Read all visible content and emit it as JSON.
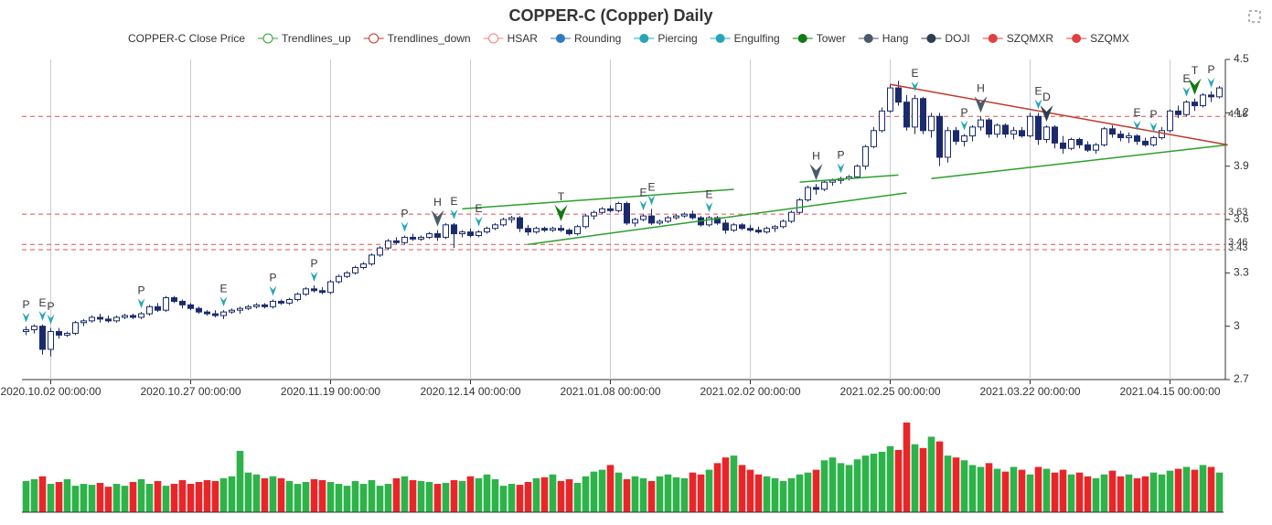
{
  "chart_data": {
    "type": "candlestick",
    "title": "COPPER-C (Copper) Daily",
    "legend": [
      {
        "name": "COPPER-C Close Price",
        "color": "#1a2a6c",
        "icon": "none"
      },
      {
        "name": "Trendlines_up",
        "color": "#2ca02c",
        "icon": "hollow"
      },
      {
        "name": "Trendlines_down",
        "color": "#c0392b",
        "icon": "hollow"
      },
      {
        "name": "HSAR",
        "color": "#f08080",
        "icon": "hollow"
      },
      {
        "name": "Rounding",
        "color": "#2e7bbf",
        "icon": "filled"
      },
      {
        "name": "Piercing",
        "color": "#26a6b5",
        "icon": "filled"
      },
      {
        "name": "Engulfing",
        "color": "#26a6b5",
        "icon": "filled"
      },
      {
        "name": "Tower",
        "color": "#127a12",
        "icon": "filled"
      },
      {
        "name": "Hang",
        "color": "#4a5a6a",
        "icon": "filled"
      },
      {
        "name": "DOJI",
        "color": "#2c3e50",
        "icon": "filled"
      },
      {
        "name": "SZQMXR",
        "color": "#e04040",
        "icon": "filled"
      },
      {
        "name": "SZQMX",
        "color": "#e04040",
        "icon": "filled"
      }
    ],
    "x": [
      null,
      null,
      null,
      "2020.10.02 00:00:00",
      null,
      null,
      null,
      null,
      null,
      null,
      null,
      null,
      null,
      null,
      null,
      null,
      null,
      null,
      null,
      null,
      "2020.10.27 00:00:00",
      null,
      null,
      null,
      null,
      null,
      null,
      null,
      null,
      null,
      null,
      null,
      null,
      null,
      null,
      null,
      null,
      "2020.11.19 00:00:00",
      null,
      null,
      null,
      null,
      null,
      null,
      null,
      null,
      null,
      null,
      null,
      null,
      null,
      null,
      null,
      null,
      "2020.12.14 00:00:00",
      null,
      null,
      null,
      null,
      null,
      null,
      null,
      null,
      null,
      null,
      null,
      null,
      null,
      null,
      null,
      null,
      "2021.01.08 00:00:00",
      null,
      null,
      null,
      null,
      null,
      null,
      null,
      null,
      null,
      null,
      null,
      null,
      null,
      null,
      null,
      null,
      "2021.02.02 00:00:00",
      null,
      null,
      null,
      null,
      null,
      null,
      null,
      null,
      null,
      null,
      null,
      null,
      null,
      null,
      null,
      null,
      "2021.02.25 00:00:00",
      null,
      null,
      null,
      null,
      null,
      null,
      null,
      null,
      null,
      null,
      null,
      null,
      null,
      null,
      null,
      null,
      "2021.03.22 00:00:00",
      null,
      null,
      null,
      null,
      null,
      null,
      null,
      null,
      null,
      null,
      null,
      null,
      null,
      null,
      null,
      null,
      "2021.04.15 00:00:00",
      null,
      null,
      null,
      null,
      null,
      null
    ],
    "ohlc": [
      [
        2.97,
        3.0,
        2.95,
        2.98
      ],
      [
        2.98,
        3.01,
        2.96,
        3.0
      ],
      [
        3.0,
        3.01,
        2.84,
        2.87
      ],
      [
        2.87,
        2.99,
        2.83,
        2.97
      ],
      [
        2.97,
        2.99,
        2.93,
        2.95
      ],
      [
        2.95,
        2.97,
        2.94,
        2.96
      ],
      [
        2.96,
        3.03,
        2.95,
        3.02
      ],
      [
        3.02,
        3.04,
        3.0,
        3.03
      ],
      [
        3.03,
        3.06,
        3.02,
        3.05
      ],
      [
        3.05,
        3.07,
        3.02,
        3.04
      ],
      [
        3.04,
        3.06,
        3.02,
        3.03
      ],
      [
        3.03,
        3.06,
        3.02,
        3.05
      ],
      [
        3.05,
        3.07,
        3.04,
        3.06
      ],
      [
        3.06,
        3.07,
        3.04,
        3.05
      ],
      [
        3.05,
        3.08,
        3.04,
        3.07
      ],
      [
        3.07,
        3.12,
        3.06,
        3.11
      ],
      [
        3.11,
        3.13,
        3.08,
        3.09
      ],
      [
        3.09,
        3.17,
        3.08,
        3.16
      ],
      [
        3.16,
        3.17,
        3.13,
        3.14
      ],
      [
        3.14,
        3.15,
        3.1,
        3.12
      ],
      [
        3.12,
        3.13,
        3.09,
        3.1
      ],
      [
        3.1,
        3.11,
        3.07,
        3.08
      ],
      [
        3.08,
        3.09,
        3.06,
        3.07
      ],
      [
        3.07,
        3.09,
        3.05,
        3.06
      ],
      [
        3.06,
        3.09,
        3.04,
        3.08
      ],
      [
        3.08,
        3.1,
        3.07,
        3.09
      ],
      [
        3.09,
        3.11,
        3.07,
        3.1
      ],
      [
        3.1,
        3.12,
        3.09,
        3.11
      ],
      [
        3.11,
        3.13,
        3.1,
        3.12
      ],
      [
        3.12,
        3.13,
        3.1,
        3.11
      ],
      [
        3.11,
        3.15,
        3.1,
        3.14
      ],
      [
        3.14,
        3.15,
        3.12,
        3.13
      ],
      [
        3.13,
        3.16,
        3.12,
        3.15
      ],
      [
        3.15,
        3.19,
        3.14,
        3.18
      ],
      [
        3.18,
        3.22,
        3.17,
        3.21
      ],
      [
        3.21,
        3.23,
        3.19,
        3.2
      ],
      [
        3.2,
        3.22,
        3.18,
        3.19
      ],
      [
        3.19,
        3.26,
        3.18,
        3.25
      ],
      [
        3.25,
        3.29,
        3.24,
        3.28
      ],
      [
        3.28,
        3.31,
        3.27,
        3.3
      ],
      [
        3.3,
        3.34,
        3.29,
        3.33
      ],
      [
        3.33,
        3.36,
        3.32,
        3.35
      ],
      [
        3.35,
        3.41,
        3.34,
        3.4
      ],
      [
        3.4,
        3.45,
        3.39,
        3.44
      ],
      [
        3.44,
        3.49,
        3.43,
        3.48
      ],
      [
        3.48,
        3.5,
        3.46,
        3.47
      ],
      [
        3.47,
        3.51,
        3.46,
        3.5
      ],
      [
        3.5,
        3.52,
        3.48,
        3.49
      ],
      [
        3.49,
        3.51,
        3.48,
        3.5
      ],
      [
        3.5,
        3.53,
        3.49,
        3.52
      ],
      [
        3.52,
        3.54,
        3.48,
        3.5
      ],
      [
        3.5,
        3.58,
        3.49,
        3.57
      ],
      [
        3.57,
        3.58,
        3.44,
        3.52
      ],
      [
        3.52,
        3.54,
        3.5,
        3.53
      ],
      [
        3.53,
        3.55,
        3.5,
        3.51
      ],
      [
        3.51,
        3.54,
        3.5,
        3.53
      ],
      [
        3.53,
        3.56,
        3.52,
        3.55
      ],
      [
        3.55,
        3.58,
        3.54,
        3.57
      ],
      [
        3.57,
        3.61,
        3.56,
        3.6
      ],
      [
        3.6,
        3.62,
        3.58,
        3.61
      ],
      [
        3.61,
        3.62,
        3.53,
        3.55
      ],
      [
        3.55,
        3.57,
        3.51,
        3.53
      ],
      [
        3.53,
        3.56,
        3.52,
        3.55
      ],
      [
        3.55,
        3.56,
        3.53,
        3.54
      ],
      [
        3.54,
        3.56,
        3.53,
        3.55
      ],
      [
        3.55,
        3.57,
        3.53,
        3.54
      ],
      [
        3.54,
        3.55,
        3.51,
        3.52
      ],
      [
        3.52,
        3.57,
        3.51,
        3.56
      ],
      [
        3.56,
        3.63,
        3.55,
        3.62
      ],
      [
        3.62,
        3.65,
        3.6,
        3.64
      ],
      [
        3.64,
        3.67,
        3.63,
        3.66
      ],
      [
        3.66,
        3.68,
        3.64,
        3.65
      ],
      [
        3.65,
        3.7,
        3.64,
        3.69
      ],
      [
        3.69,
        3.7,
        3.57,
        3.58
      ],
      [
        3.58,
        3.61,
        3.56,
        3.6
      ],
      [
        3.6,
        3.63,
        3.59,
        3.62
      ],
      [
        3.62,
        3.66,
        3.57,
        3.58
      ],
      [
        3.58,
        3.6,
        3.57,
        3.59
      ],
      [
        3.59,
        3.62,
        3.58,
        3.61
      ],
      [
        3.61,
        3.63,
        3.6,
        3.62
      ],
      [
        3.62,
        3.64,
        3.61,
        3.63
      ],
      [
        3.63,
        3.65,
        3.6,
        3.61
      ],
      [
        3.61,
        3.62,
        3.56,
        3.57
      ],
      [
        3.57,
        3.62,
        3.56,
        3.61
      ],
      [
        3.61,
        3.62,
        3.57,
        3.58
      ],
      [
        3.58,
        3.6,
        3.52,
        3.54
      ],
      [
        3.54,
        3.58,
        3.53,
        3.57
      ],
      [
        3.57,
        3.58,
        3.54,
        3.55
      ],
      [
        3.55,
        3.57,
        3.53,
        3.54
      ],
      [
        3.54,
        3.56,
        3.52,
        3.53
      ],
      [
        3.53,
        3.56,
        3.52,
        3.55
      ],
      [
        3.55,
        3.57,
        3.53,
        3.56
      ],
      [
        3.56,
        3.6,
        3.55,
        3.59
      ],
      [
        3.59,
        3.65,
        3.58,
        3.64
      ],
      [
        3.64,
        3.72,
        3.63,
        3.71
      ],
      [
        3.71,
        3.79,
        3.7,
        3.78
      ],
      [
        3.78,
        3.8,
        3.74,
        3.77
      ],
      [
        3.77,
        3.82,
        3.76,
        3.81
      ],
      [
        3.81,
        3.83,
        3.79,
        3.82
      ],
      [
        3.82,
        3.84,
        3.8,
        3.83
      ],
      [
        3.83,
        3.85,
        3.82,
        3.84
      ],
      [
        3.84,
        3.91,
        3.83,
        3.9
      ],
      [
        3.9,
        4.02,
        3.88,
        4.01
      ],
      [
        4.01,
        4.12,
        4.0,
        4.1
      ],
      [
        4.1,
        4.23,
        4.09,
        4.21
      ],
      [
        4.21,
        4.36,
        4.2,
        4.34
      ],
      [
        4.34,
        4.38,
        4.24,
        4.26
      ],
      [
        4.26,
        4.3,
        4.1,
        4.12
      ],
      [
        4.12,
        4.3,
        4.08,
        4.28
      ],
      [
        4.28,
        4.29,
        4.08,
        4.1
      ],
      [
        4.1,
        4.2,
        4.06,
        4.18
      ],
      [
        4.18,
        4.2,
        3.9,
        3.95
      ],
      [
        3.95,
        4.12,
        3.92,
        4.1
      ],
      [
        4.1,
        4.12,
        4.02,
        4.04
      ],
      [
        4.04,
        4.08,
        4.01,
        4.07
      ],
      [
        4.07,
        4.13,
        4.04,
        4.12
      ],
      [
        4.12,
        4.18,
        4.1,
        4.16
      ],
      [
        4.16,
        4.17,
        4.06,
        4.08
      ],
      [
        4.08,
        4.14,
        4.06,
        4.13
      ],
      [
        4.13,
        4.14,
        4.06,
        4.08
      ],
      [
        4.08,
        4.12,
        4.05,
        4.1
      ],
      [
        4.1,
        4.12,
        4.06,
        4.07
      ],
      [
        4.07,
        4.2,
        4.06,
        4.18
      ],
      [
        4.18,
        4.2,
        4.02,
        4.05
      ],
      [
        4.05,
        4.13,
        4.03,
        4.12
      ],
      [
        4.12,
        4.13,
        4.0,
        4.03
      ],
      [
        4.03,
        4.07,
        3.97,
        4.0
      ],
      [
        4.0,
        4.06,
        3.99,
        4.05
      ],
      [
        4.05,
        4.06,
        4.0,
        4.02
      ],
      [
        4.02,
        4.04,
        3.98,
        3.99
      ],
      [
        3.99,
        4.03,
        3.97,
        4.02
      ],
      [
        4.02,
        4.12,
        4.01,
        4.11
      ],
      [
        4.11,
        4.13,
        4.06,
        4.08
      ],
      [
        4.08,
        4.1,
        4.04,
        4.06
      ],
      [
        4.06,
        4.09,
        4.03,
        4.07
      ],
      [
        4.07,
        4.08,
        4.02,
        4.04
      ],
      [
        4.04,
        4.06,
        4.01,
        4.02
      ],
      [
        4.02,
        4.07,
        4.01,
        4.06
      ],
      [
        4.06,
        4.12,
        4.05,
        4.1
      ],
      [
        4.1,
        4.22,
        4.09,
        4.21
      ],
      [
        4.21,
        4.24,
        4.17,
        4.19
      ],
      [
        4.19,
        4.27,
        4.18,
        4.26
      ],
      [
        4.26,
        4.28,
        4.21,
        4.24
      ],
      [
        4.24,
        4.31,
        4.23,
        4.3
      ],
      [
        4.3,
        4.32,
        4.26,
        4.29
      ],
      [
        4.29,
        4.35,
        4.28,
        4.34
      ]
    ],
    "volume": [
      33,
      35,
      38,
      30,
      32,
      35,
      28,
      30,
      29,
      31,
      27,
      30,
      28,
      32,
      35,
      30,
      33,
      28,
      30,
      34,
      30,
      32,
      34,
      33,
      36,
      38,
      65,
      42,
      40,
      36,
      38,
      36,
      33,
      30,
      32,
      35,
      34,
      32,
      30,
      28,
      33,
      30,
      34,
      28,
      30,
      36,
      38,
      34,
      33,
      32,
      30,
      31,
      34,
      33,
      38,
      36,
      40,
      35,
      28,
      30,
      29,
      32,
      36,
      37,
      40,
      33,
      35,
      31,
      38,
      43,
      45,
      50,
      42,
      35,
      38,
      36,
      33,
      38,
      40,
      37,
      36,
      42,
      40,
      45,
      52,
      58,
      60,
      50,
      45,
      40,
      38,
      36,
      33,
      36,
      40,
      42,
      45,
      55,
      58,
      52,
      50,
      56,
      60,
      62,
      64,
      70,
      66,
      95,
      72,
      68,
      80,
      75,
      60,
      58,
      55,
      50,
      48,
      52,
      46,
      43,
      48,
      45,
      40,
      48,
      46,
      42,
      45,
      40,
      42,
      38,
      36,
      40,
      44,
      38,
      40,
      36,
      38,
      42,
      40,
      44,
      46,
      48,
      45,
      50,
      48,
      42
    ],
    "ylim": [
      2.7,
      4.5
    ],
    "yticks": [
      2.7,
      3,
      3.3,
      3.6,
      3.9,
      4.2,
      4.5
    ],
    "hsar_levels": [
      4.18,
      3.63,
      3.46,
      3.43
    ],
    "trendlines_up": [
      [
        53,
        3.66,
        86,
        3.77
      ],
      [
        61,
        3.46,
        107,
        3.75
      ],
      [
        94,
        3.81,
        106,
        3.85
      ],
      [
        110,
        3.83,
        146,
        4.02
      ]
    ],
    "trendlines_down": [
      [
        105,
        4.36,
        146,
        4.02
      ]
    ],
    "signals": [
      {
        "label": "P",
        "index": 0,
        "color": "#26a6b5"
      },
      {
        "label": "E",
        "index": 2,
        "color": "#26a6b5"
      },
      {
        "label": "P",
        "index": 3,
        "color": "#26a6b5"
      },
      {
        "label": "P",
        "index": 14,
        "color": "#26a6b5"
      },
      {
        "label": "E",
        "index": 24,
        "color": "#26a6b5"
      },
      {
        "label": "P",
        "index": 30,
        "color": "#26a6b5"
      },
      {
        "label": "P",
        "index": 35,
        "color": "#26a6b5"
      },
      {
        "label": "P",
        "index": 46,
        "color": "#26a6b5"
      },
      {
        "label": "H",
        "index": 50,
        "color": "#4a5a6a"
      },
      {
        "label": "E",
        "index": 52,
        "color": "#26a6b5"
      },
      {
        "label": "E",
        "index": 55,
        "color": "#26a6b5"
      },
      {
        "label": "T",
        "index": 65,
        "color": "#127a12"
      },
      {
        "label": "E",
        "index": 75,
        "color": "#26a6b5"
      },
      {
        "label": "E",
        "index": 76,
        "color": "#26a6b5"
      },
      {
        "label": "E",
        "index": 83,
        "color": "#26a6b5"
      },
      {
        "label": "H",
        "index": 96,
        "color": "#4a5a6a"
      },
      {
        "label": "P",
        "index": 99,
        "color": "#26a6b5"
      },
      {
        "label": "E",
        "index": 108,
        "color": "#26a6b5"
      },
      {
        "label": "P",
        "index": 114,
        "color": "#26a6b5"
      },
      {
        "label": "H",
        "index": 116,
        "color": "#4a5a6a"
      },
      {
        "label": "E",
        "index": 123,
        "color": "#26a6b5"
      },
      {
        "label": "D",
        "index": 124,
        "color": "#2c3e50"
      },
      {
        "label": "E",
        "index": 135,
        "color": "#26a6b5"
      },
      {
        "label": "P",
        "index": 137,
        "color": "#26a6b5"
      },
      {
        "label": "E",
        "index": 141,
        "color": "#26a6b5"
      },
      {
        "label": "T",
        "index": 142,
        "color": "#127a12"
      },
      {
        "label": "P",
        "index": 144,
        "color": "#26a6b5"
      }
    ]
  }
}
